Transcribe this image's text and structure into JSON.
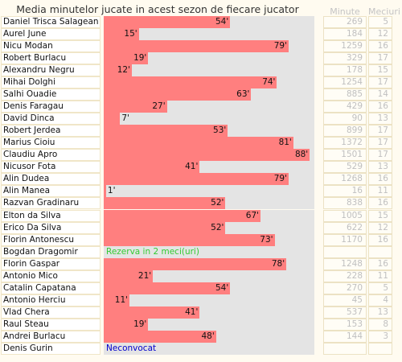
{
  "chart_data": {
    "type": "bar",
    "title": "Media minutelor jucate in acest sezon de fiecare jucator",
    "column_headers": {
      "minutes": "Minute",
      "matches": "Meciuri"
    },
    "unit_suffix": "'",
    "xlim": [
      0,
      90
    ],
    "colors": {
      "bar": "#ff7f7f",
      "track": "#e4e4e4",
      "reserve": "#33cc33",
      "not_called": "#0000cc"
    },
    "rows": [
      {
        "name": "Daniel Trisca Salagean",
        "avg": 54,
        "minutes": "269",
        "matches": "5"
      },
      {
        "name": "Aurel June",
        "avg": 15,
        "minutes": "184",
        "matches": "12"
      },
      {
        "name": "Nicu Modan",
        "avg": 79,
        "minutes": "1259",
        "matches": "16"
      },
      {
        "name": "Robert Burlacu",
        "avg": 19,
        "minutes": "329",
        "matches": "17"
      },
      {
        "name": "Alexandru Negru",
        "avg": 12,
        "minutes": "178",
        "matches": "15"
      },
      {
        "name": "Mihai Dolghi",
        "avg": 74,
        "minutes": "1254",
        "matches": "17"
      },
      {
        "name": "Salhi Ouadie",
        "avg": 63,
        "minutes": "885",
        "matches": "14"
      },
      {
        "name": "Denis Faragau",
        "avg": 27,
        "minutes": "429",
        "matches": "16"
      },
      {
        "name": "David Dinca",
        "avg": 7,
        "minutes": "90",
        "matches": "13"
      },
      {
        "name": "Robert Jerdea",
        "avg": 53,
        "minutes": "899",
        "matches": "17"
      },
      {
        "name": "Marius Cioiu",
        "avg": 81,
        "minutes": "1372",
        "matches": "17"
      },
      {
        "name": "Claudiu Apro",
        "avg": 88,
        "minutes": "1501",
        "matches": "17"
      },
      {
        "name": "Nicusor Fota",
        "avg": 41,
        "minutes": "529",
        "matches": "13"
      },
      {
        "name": "Alin Dudea",
        "avg": 79,
        "minutes": "1268",
        "matches": "16"
      },
      {
        "name": "Alin Manea",
        "avg": 1,
        "minutes": "16",
        "matches": "11"
      },
      {
        "name": "Razvan Gradinaru",
        "avg": 52,
        "minutes": "838",
        "matches": "16"
      },
      {
        "name": "Elton da Silva",
        "avg": 67,
        "minutes": "1005",
        "matches": "15"
      },
      {
        "name": "Erico Da Silva",
        "avg": 52,
        "minutes": "622",
        "matches": "12"
      },
      {
        "name": "Florin Antonescu",
        "avg": 73,
        "minutes": "1170",
        "matches": "16"
      },
      {
        "name": "Bogdan Dragomir",
        "avg": null,
        "note": "Rezerva in 2 meci(uri)",
        "note_type": "reserve",
        "minutes": "",
        "matches": ""
      },
      {
        "name": "Florin Gaspar",
        "avg": 78,
        "minutes": "1248",
        "matches": "16"
      },
      {
        "name": "Antonio Mico",
        "avg": 21,
        "minutes": "228",
        "matches": "11"
      },
      {
        "name": "Catalin Capatana",
        "avg": 54,
        "minutes": "270",
        "matches": "5"
      },
      {
        "name": "Antonio Herciu",
        "avg": 11,
        "minutes": "45",
        "matches": "4"
      },
      {
        "name": "Vlad Chera",
        "avg": 41,
        "minutes": "537",
        "matches": "13"
      },
      {
        "name": "Raul Steau",
        "avg": 19,
        "minutes": "153",
        "matches": "8"
      },
      {
        "name": "Andrei Burlacu",
        "avg": 48,
        "minutes": "144",
        "matches": "3"
      },
      {
        "name": "Denis Gurin",
        "avg": null,
        "note": "Neconvocat",
        "note_type": "not_called",
        "minutes": "",
        "matches": ""
      }
    ]
  }
}
